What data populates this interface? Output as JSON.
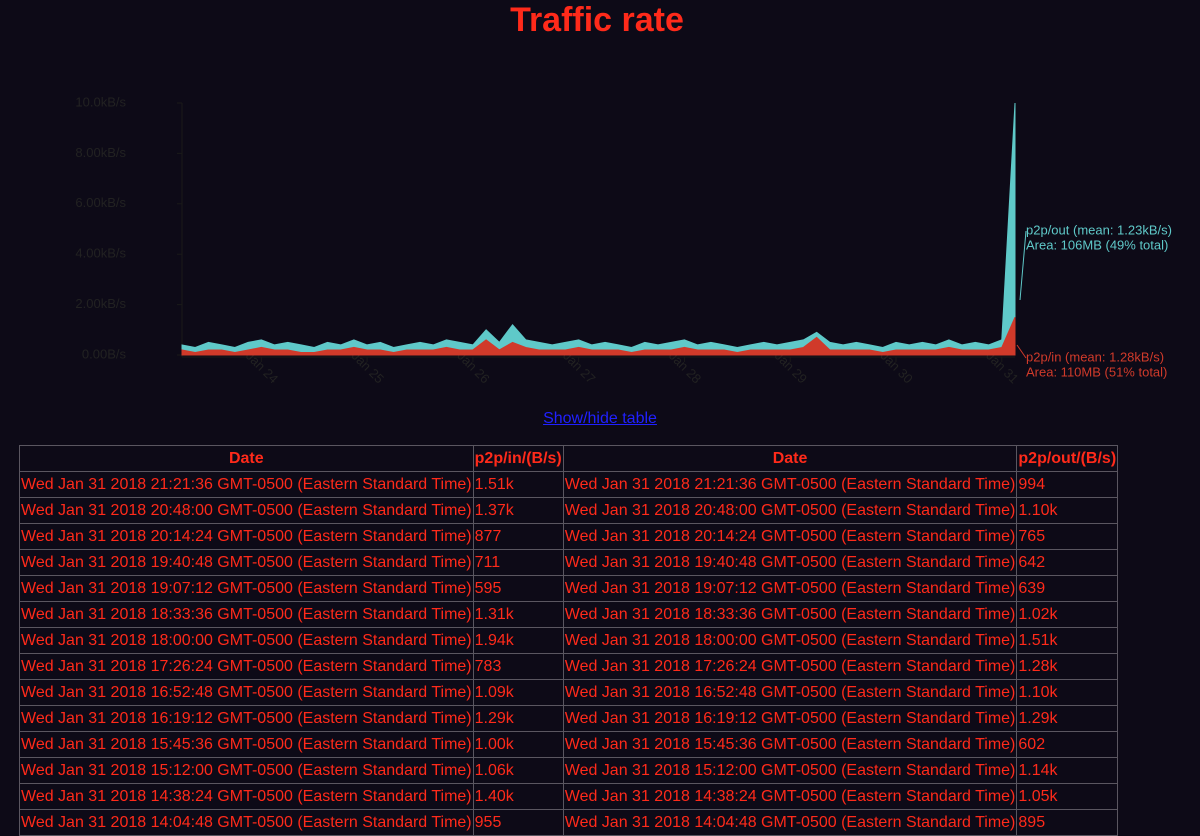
{
  "title": "Traffic rate",
  "chart_data": {
    "type": "area",
    "categories": [
      null,
      null,
      null,
      null,
      null,
      null,
      "Jan 24",
      null,
      null,
      null,
      null,
      null,
      null,
      null,
      "Jan 25",
      null,
      null,
      null,
      null,
      null,
      null,
      null,
      "Jan 26",
      null,
      null,
      null,
      null,
      null,
      null,
      null,
      "Jan 27",
      null,
      null,
      null,
      null,
      null,
      null,
      null,
      "Jan 28",
      null,
      null,
      null,
      null,
      null,
      null,
      null,
      "Jan 29",
      null,
      null,
      null,
      null,
      null,
      null,
      null,
      "Jan 30",
      null,
      null,
      null,
      null,
      null,
      null,
      null,
      "Jan 31",
      null
    ],
    "series": [
      {
        "name": "p2p/out",
        "color": "#5fc9c9",
        "values": [
          0.4,
          0.3,
          0.5,
          0.4,
          0.3,
          0.5,
          0.6,
          0.4,
          0.5,
          0.4,
          0.3,
          0.5,
          0.4,
          0.6,
          0.4,
          0.5,
          0.3,
          0.4,
          0.5,
          0.4,
          0.6,
          0.5,
          0.4,
          1.0,
          0.5,
          1.2,
          0.6,
          0.5,
          0.4,
          0.5,
          0.6,
          0.4,
          0.5,
          0.4,
          0.3,
          0.5,
          0.4,
          0.5,
          0.6,
          0.4,
          0.5,
          0.4,
          0.3,
          0.4,
          0.5,
          0.4,
          0.5,
          0.6,
          0.9,
          0.5,
          0.4,
          0.5,
          0.4,
          0.3,
          0.5,
          0.4,
          0.5,
          0.4,
          0.6,
          0.4,
          0.5,
          0.4,
          0.6,
          10
        ]
      },
      {
        "name": "p2p/in",
        "color": "#d03a2a",
        "values": [
          0.2,
          0.1,
          0.2,
          0.2,
          0.1,
          0.2,
          0.3,
          0.2,
          0.2,
          0.1,
          0.1,
          0.2,
          0.2,
          0.3,
          0.2,
          0.2,
          0.1,
          0.2,
          0.2,
          0.2,
          0.3,
          0.2,
          0.2,
          0.6,
          0.2,
          0.5,
          0.3,
          0.2,
          0.2,
          0.2,
          0.3,
          0.2,
          0.2,
          0.2,
          0.1,
          0.2,
          0.2,
          0.2,
          0.3,
          0.2,
          0.2,
          0.2,
          0.1,
          0.2,
          0.2,
          0.2,
          0.2,
          0.3,
          0.7,
          0.2,
          0.2,
          0.2,
          0.2,
          0.1,
          0.2,
          0.2,
          0.2,
          0.2,
          0.3,
          0.2,
          0.2,
          0.2,
          0.3,
          1.5
        ]
      }
    ],
    "annotations": [
      "p2p/out (mean: 1.23kB/s)",
      "Area: 106MB (49% total)",
      "p2p/in (mean: 1.28kB/s)",
      "Area: 110MB (51% total)"
    ],
    "ylim": [
      0,
      10
    ],
    "yticks": [
      {
        "value": 0,
        "label": "0.00B/s"
      },
      {
        "value": 2,
        "label": "2.00kB/s"
      },
      {
        "value": 4,
        "label": "4.00kB/s"
      },
      {
        "value": 6,
        "label": "6.00kB/s"
      },
      {
        "value": 8,
        "label": "8.00kB/s"
      },
      {
        "value": 10,
        "label": "10.0kB/s"
      }
    ]
  },
  "toggle": "Show/hide table",
  "table": {
    "columns": [
      "Date",
      "p2p/in/(B/s)",
      "Date",
      "p2p/out/(B/s)"
    ],
    "rows": [
      [
        "Wed Jan 31 2018 21:21:36 GMT-0500 (Eastern Standard Time)",
        "1.51k",
        "Wed Jan 31 2018 21:21:36 GMT-0500 (Eastern Standard Time)",
        "994"
      ],
      [
        "Wed Jan 31 2018 20:48:00 GMT-0500 (Eastern Standard Time)",
        "1.37k",
        "Wed Jan 31 2018 20:48:00 GMT-0500 (Eastern Standard Time)",
        "1.10k"
      ],
      [
        "Wed Jan 31 2018 20:14:24 GMT-0500 (Eastern Standard Time)",
        "877",
        "Wed Jan 31 2018 20:14:24 GMT-0500 (Eastern Standard Time)",
        "765"
      ],
      [
        "Wed Jan 31 2018 19:40:48 GMT-0500 (Eastern Standard Time)",
        "711",
        "Wed Jan 31 2018 19:40:48 GMT-0500 (Eastern Standard Time)",
        "642"
      ],
      [
        "Wed Jan 31 2018 19:07:12 GMT-0500 (Eastern Standard Time)",
        "595",
        "Wed Jan 31 2018 19:07:12 GMT-0500 (Eastern Standard Time)",
        "639"
      ],
      [
        "Wed Jan 31 2018 18:33:36 GMT-0500 (Eastern Standard Time)",
        "1.31k",
        "Wed Jan 31 2018 18:33:36 GMT-0500 (Eastern Standard Time)",
        "1.02k"
      ],
      [
        "Wed Jan 31 2018 18:00:00 GMT-0500 (Eastern Standard Time)",
        "1.94k",
        "Wed Jan 31 2018 18:00:00 GMT-0500 (Eastern Standard Time)",
        "1.51k"
      ],
      [
        "Wed Jan 31 2018 17:26:24 GMT-0500 (Eastern Standard Time)",
        "783",
        "Wed Jan 31 2018 17:26:24 GMT-0500 (Eastern Standard Time)",
        "1.28k"
      ],
      [
        "Wed Jan 31 2018 16:52:48 GMT-0500 (Eastern Standard Time)",
        "1.09k",
        "Wed Jan 31 2018 16:52:48 GMT-0500 (Eastern Standard Time)",
        "1.10k"
      ],
      [
        "Wed Jan 31 2018 16:19:12 GMT-0500 (Eastern Standard Time)",
        "1.29k",
        "Wed Jan 31 2018 16:19:12 GMT-0500 (Eastern Standard Time)",
        "1.29k"
      ],
      [
        "Wed Jan 31 2018 15:45:36 GMT-0500 (Eastern Standard Time)",
        "1.00k",
        "Wed Jan 31 2018 15:45:36 GMT-0500 (Eastern Standard Time)",
        "602"
      ],
      [
        "Wed Jan 31 2018 15:12:00 GMT-0500 (Eastern Standard Time)",
        "1.06k",
        "Wed Jan 31 2018 15:12:00 GMT-0500 (Eastern Standard Time)",
        "1.14k"
      ],
      [
        "Wed Jan 31 2018 14:38:24 GMT-0500 (Eastern Standard Time)",
        "1.40k",
        "Wed Jan 31 2018 14:38:24 GMT-0500 (Eastern Standard Time)",
        "1.05k"
      ],
      [
        "Wed Jan 31 2018 14:04:48 GMT-0500 (Eastern Standard Time)",
        "955",
        "Wed Jan 31 2018 14:04:48 GMT-0500 (Eastern Standard Time)",
        "895"
      ]
    ]
  }
}
